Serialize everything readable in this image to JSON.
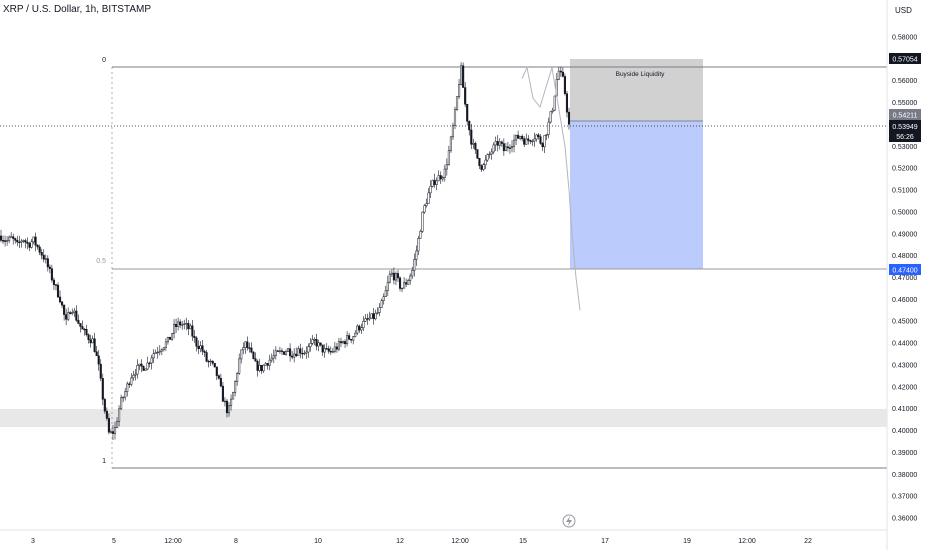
{
  "header": {
    "symbol_title": "XRP / U.S. Dollar, 1h, BITSTAMP"
  },
  "price_axis": {
    "currency": "USD",
    "ticks": [
      "0.58000",
      "0.57000",
      "0.56000",
      "0.55000",
      "0.54000",
      "0.53000",
      "0.52000",
      "0.51000",
      "0.50000",
      "0.49000",
      "0.48000",
      "0.47000",
      "0.46000",
      "0.45000",
      "0.44000",
      "0.43000",
      "0.42000",
      "0.41000",
      "0.40000",
      "0.39000",
      "0.38000",
      "0.37000",
      "0.36000"
    ],
    "badges": {
      "fib_top": "0.57054",
      "zone_top": "0.54211",
      "last_price": "0.53949",
      "countdown": "56:26",
      "target": "0.47400"
    }
  },
  "time_axis": {
    "ticks": [
      "3",
      "5",
      "12:00",
      "8",
      "10",
      "12",
      "12:00",
      "15",
      "17",
      "19",
      "12:00",
      "22"
    ]
  },
  "fib": {
    "level_0_label": "0",
    "level_05_label": "0.5",
    "level_1_label": "1"
  },
  "annotations": {
    "zone_label": "Buyside Liquidity"
  },
  "colors": {
    "bull": "#26a69a",
    "bear": "#131722",
    "candle": "#131722",
    "last_price_bg": "#131722",
    "target_bg": "#2962ff",
    "target_zone": "#bbcbfc",
    "stop_zone": "#d1d1d1",
    "support_zone": "#e8e8e8"
  },
  "chart_data": {
    "type": "candlestick",
    "symbol": "XRP / U.S. Dollar",
    "interval": "1h",
    "exchange": "BITSTAMP",
    "ylim": [
      0.355,
      0.585
    ],
    "fib_levels": [
      {
        "label": "0",
        "value": 0.5672
      },
      {
        "label": "0.5",
        "value": 0.474
      },
      {
        "label": "1",
        "value": 0.3825
      }
    ],
    "support_zone": [
      0.4015,
      0.4095
    ],
    "position": {
      "entry": 0.5421,
      "stop": 0.5705,
      "target": 0.474
    },
    "last_price": 0.53949,
    "close_path": [
      [
        0.489,
        0.4865,
        0.488,
        0.4845,
        0.488,
        0.485,
        0.487,
        0.483,
        0.479,
        0.4725,
        0.466,
        0.46,
        0.449,
        0.457,
        0.451,
        0.446,
        0.443,
        0.441,
        0.43,
        0.412,
        0.398,
        0.4,
        0.412,
        0.418,
        0.425,
        0.428,
        0.429,
        0.43,
        0.435,
        0.437,
        0.439,
        0.441,
        0.447,
        0.449,
        0.448,
        0.446,
        0.44,
        0.438,
        0.432,
        0.43,
        0.425,
        0.415,
        0.408,
        0.418,
        0.432,
        0.44,
        0.436,
        0.43,
        0.428,
        0.431,
        0.433,
        0.435,
        0.436,
        0.437,
        0.435,
        0.437,
        0.436,
        0.438,
        0.441,
        0.438,
        0.436,
        0.436,
        0.438,
        0.44,
        0.442,
        0.443,
        0.447,
        0.449,
        0.451,
        0.452,
        0.455,
        0.462,
        0.472,
        0.47,
        0.465,
        0.468,
        0.473,
        0.485,
        0.5,
        0.508,
        0.514,
        0.516,
        0.518,
        0.53,
        0.546,
        0.566,
        0.545,
        0.532,
        0.525,
        0.52,
        0.525,
        0.529,
        0.532,
        0.528,
        0.531,
        0.533,
        0.535,
        0.532,
        0.534,
        0.535,
        0.531,
        0.538,
        0.548,
        0.565,
        0.5595,
        0.5395
      ]
    ],
    "projection": [
      0.561,
      0.566,
      0.552,
      0.548,
      0.566,
      0.53,
      0.51,
      0.49,
      0.47,
      0.455
    ],
    "x_ticks": [
      "3",
      "5",
      "12:00",
      "8",
      "10",
      "12",
      "12:00",
      "15",
      "17",
      "19",
      "12:00",
      "22"
    ]
  }
}
